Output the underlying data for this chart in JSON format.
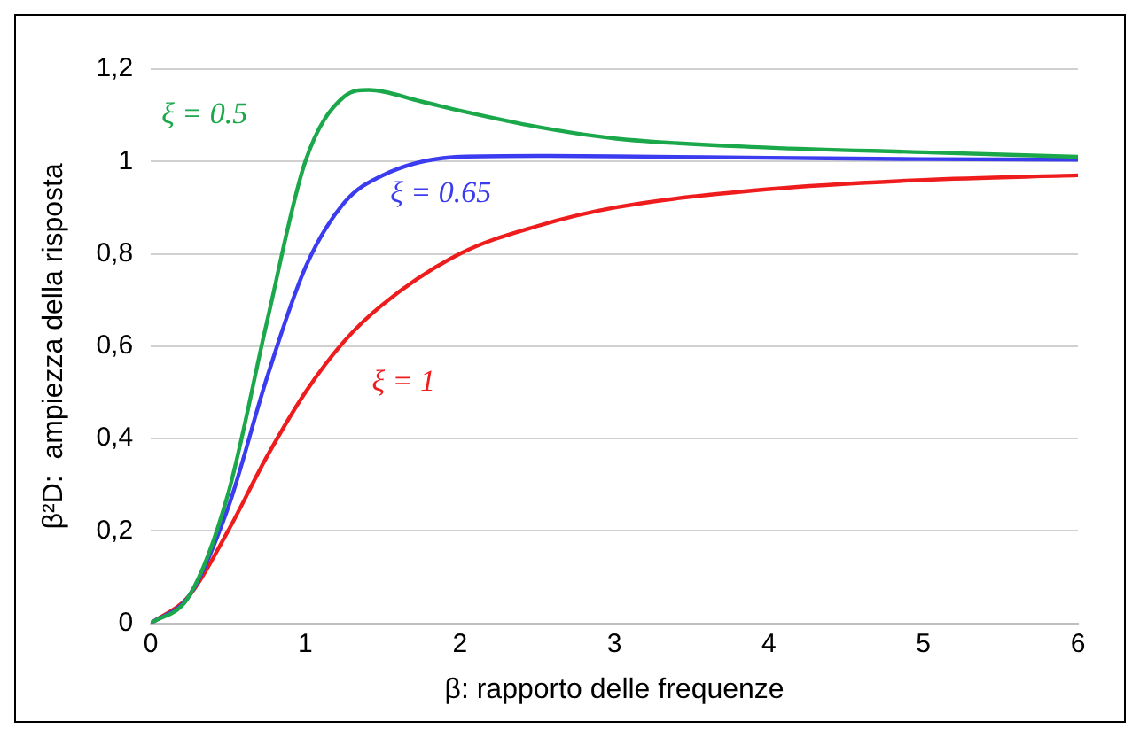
{
  "chart_data": {
    "type": "line",
    "xlabel": "β: rapporto delle frequenze",
    "ylabel": "β²D:  ampiezza della risposta",
    "xlim": [
      0,
      6
    ],
    "xticks": [
      0,
      1,
      2,
      3,
      4,
      5,
      6
    ],
    "ylim": [
      0,
      1.2
    ],
    "yticks": [
      {
        "value": 0,
        "label": "0"
      },
      {
        "value": 0.2,
        "label": "0,2"
      },
      {
        "value": 0.4,
        "label": "0,4"
      },
      {
        "value": 0.6,
        "label": "0,6"
      },
      {
        "value": 0.8,
        "label": "0,8"
      },
      {
        "value": 1,
        "label": "1"
      },
      {
        "value": 1.2,
        "label": "1,2"
      }
    ],
    "grid": "y",
    "legend": false,
    "marker": "none",
    "line_style": "solid",
    "series": [
      {
        "name": "ξ = 0.5",
        "color": "#1aa84a",
        "x": [
          0,
          0.25,
          0.5,
          0.75,
          1,
          1.25,
          1.41,
          1.75,
          2,
          2.5,
          3,
          4,
          5,
          6
        ],
        "values": [
          0,
          0.06,
          0.28,
          0.65,
          1,
          1.14,
          1.155,
          1.13,
          1.11,
          1.075,
          1.05,
          1.03,
          1.02,
          1.01
        ]
      },
      {
        "name": "ξ = 0.65",
        "color": "#3b3bf0",
        "x": [
          0,
          0.25,
          0.5,
          0.75,
          1,
          1.25,
          1.5,
          2,
          2.5,
          3,
          4,
          5,
          6
        ],
        "values": [
          0,
          0.06,
          0.25,
          0.53,
          0.77,
          0.91,
          0.97,
          1.01,
          1.012,
          1.011,
          1.008,
          1.005,
          1.004
        ]
      },
      {
        "name": "ξ = 1",
        "color": "#ee1c1c",
        "x": [
          0,
          0.25,
          0.5,
          0.75,
          1,
          1.25,
          1.5,
          2,
          2.5,
          3,
          4,
          5,
          6
        ],
        "values": [
          0,
          0.06,
          0.2,
          0.36,
          0.5,
          0.61,
          0.69,
          0.8,
          0.86,
          0.9,
          0.94,
          0.96,
          0.97
        ]
      }
    ]
  }
}
